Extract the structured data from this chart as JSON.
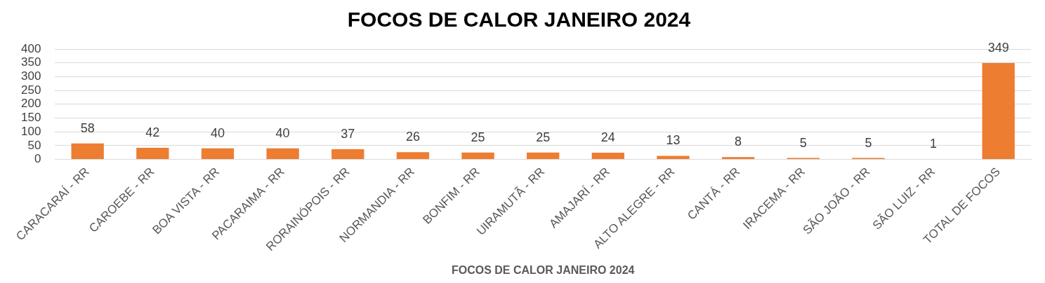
{
  "chart_data": {
    "type": "bar",
    "title": "FOCOS DE CALOR JANEIRO 2024",
    "xlabel": "FOCOS DE CALOR JANEIRO 2024",
    "categories": [
      "CARACARAÍ - RR",
      "CAROEBE - RR",
      "BOA VISTA - RR",
      "PACARAIMA - RR",
      "RORAINÓPOIS - RR",
      "NORMANDIA - RR",
      "BONFIM - RR",
      "UIRAMUTÃ - RR",
      "AMAJARÍ - RR",
      "ALTO ALEGRE - RR",
      "CANTÁ - RR",
      "IRACEMA - RR",
      "SÃO JOÃO - RR",
      "SÃO LUIZ - RR",
      "TOTAL DE FOCOS"
    ],
    "values": [
      58,
      42,
      40,
      40,
      37,
      26,
      25,
      25,
      24,
      13,
      8,
      5,
      5,
      1,
      349
    ],
    "color": "#ed7d31",
    "ylim": [
      0,
      400
    ],
    "yticks": [
      0,
      50,
      100,
      150,
      200,
      250,
      300,
      350,
      400
    ],
    "grid": "y",
    "legend": false,
    "data_labels": true
  }
}
